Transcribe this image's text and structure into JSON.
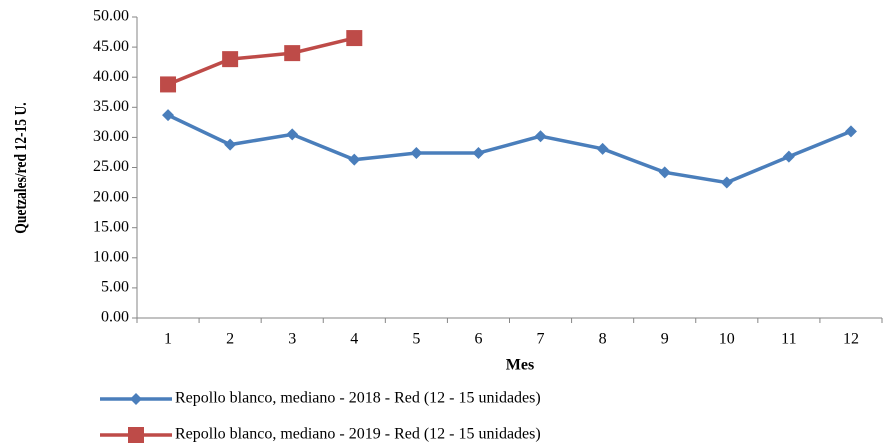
{
  "chart_data": {
    "type": "line",
    "x_label": "Mes",
    "y_label": "Quetzales/red 12-15 U.",
    "categories": [
      "1",
      "2",
      "3",
      "4",
      "5",
      "6",
      "7",
      "8",
      "9",
      "10",
      "11",
      "12"
    ],
    "series": [
      {
        "name": "Repollo blanco, mediano - 2018 - Red (12 - 15 unidades)",
        "color": "#4a7ebb",
        "marker": "diamond",
        "values": [
          33.7,
          28.8,
          30.5,
          26.3,
          27.4,
          27.4,
          30.2,
          28.1,
          24.2,
          22.5,
          26.8,
          31.0
        ]
      },
      {
        "name": "Repollo blanco, mediano - 2019 - Red (12 - 15 unidades)",
        "color": "#be4b48",
        "marker": "square",
        "values": [
          38.8,
          43.0,
          44.0,
          46.5,
          null,
          null,
          null,
          null,
          null,
          null,
          null,
          null
        ]
      }
    ],
    "ylim": [
      0,
      50
    ],
    "yticks": [
      {
        "value": 0,
        "label": "0.00"
      },
      {
        "value": 5,
        "label": "5.00"
      },
      {
        "value": 10,
        "label": "10.00"
      },
      {
        "value": 15,
        "label": "15.00"
      },
      {
        "value": 20,
        "label": "20.00"
      },
      {
        "value": 25,
        "label": "25.00"
      },
      {
        "value": 30,
        "label": "30.00"
      },
      {
        "value": 35,
        "label": "35.00"
      },
      {
        "value": 40,
        "label": "40.00"
      },
      {
        "value": 45,
        "label": "45.00"
      },
      {
        "value": 50,
        "label": "50.00"
      }
    ],
    "grid": false
  }
}
